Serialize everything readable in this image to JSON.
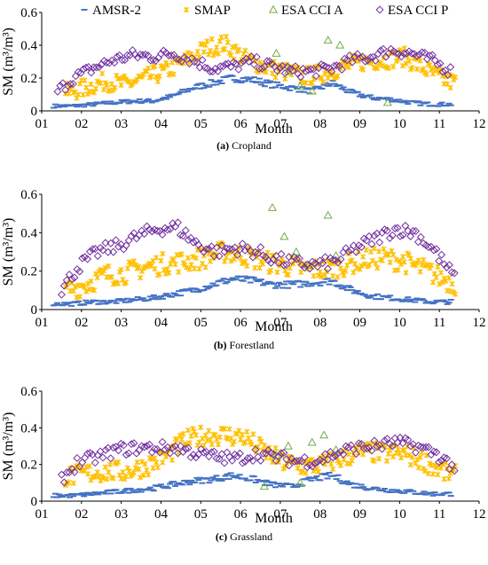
{
  "legend": [
    {
      "name": "AMSR-2",
      "color": "#4472c4",
      "marker": "dash"
    },
    {
      "name": "SMAP",
      "color": "#ffc000",
      "marker": "star"
    },
    {
      "name": "ESA CCI A",
      "color": "#70ad47",
      "marker": "triangle"
    },
    {
      "name": "ESA CCI P",
      "color": "#7030a0",
      "marker": "diamond"
    }
  ],
  "chart_data": [
    {
      "type": "scatter",
      "panel_label": "(a)",
      "caption": "Cropland",
      "xlabel": "Month",
      "ylabel": "SM (m³/m³)",
      "xlim": [
        1,
        12
      ],
      "ylim": [
        0,
        0.6
      ],
      "xticks": [
        "01",
        "02",
        "03",
        "04",
        "05",
        "06",
        "07",
        "08",
        "09",
        "10",
        "11",
        "12"
      ],
      "yticks": [
        "0",
        "0.2",
        "0.4",
        "0.6"
      ],
      "series": [
        {
          "name": "AMSR-2",
          "x": [
            1.3,
            1.8,
            2.3,
            2.8,
            3.3,
            3.8,
            4.3,
            4.8,
            5.3,
            5.8,
            6.3,
            6.8,
            7.3,
            7.8,
            8.3,
            8.8,
            9.3,
            9.8,
            10.3,
            10.8,
            11.3
          ],
          "y": [
            0.03,
            0.03,
            0.04,
            0.05,
            0.06,
            0.06,
            0.09,
            0.14,
            0.17,
            0.2,
            0.19,
            0.16,
            0.14,
            0.12,
            0.17,
            0.11,
            0.08,
            0.07,
            0.05,
            0.04,
            0.04
          ]
        },
        {
          "name": "SMAP",
          "x": [
            1.6,
            2.1,
            2.6,
            3.1,
            3.6,
            4.1,
            4.6,
            5.1,
            5.6,
            6.1,
            6.6,
            7.1,
            7.6,
            8.1,
            8.6,
            9.1,
            9.6,
            10.1,
            10.6,
            11.1,
            11.4
          ],
          "y": [
            0.11,
            0.14,
            0.18,
            0.16,
            0.2,
            0.24,
            0.3,
            0.38,
            0.41,
            0.32,
            0.27,
            0.24,
            0.21,
            0.23,
            0.27,
            0.3,
            0.31,
            0.33,
            0.26,
            0.19,
            0.17
          ]
        },
        {
          "name": "ESA CCI A",
          "x": [
            6.9,
            7.2,
            7.5,
            7.8,
            8.2,
            8.5,
            9.7
          ],
          "y": [
            0.35,
            0.24,
            0.15,
            0.12,
            0.43,
            0.4,
            0.05
          ]
        },
        {
          "name": "ESA CCI P",
          "x": [
            1.4,
            1.8,
            2.3,
            2.8,
            3.3,
            3.8,
            4.3,
            4.8,
            5.3,
            5.8,
            6.3,
            6.8,
            7.3,
            7.8,
            8.3,
            8.8,
            9.3,
            9.8,
            10.3,
            10.8,
            11.3
          ],
          "y": [
            0.12,
            0.2,
            0.26,
            0.31,
            0.34,
            0.33,
            0.35,
            0.31,
            0.26,
            0.27,
            0.3,
            0.27,
            0.24,
            0.24,
            0.26,
            0.31,
            0.33,
            0.37,
            0.35,
            0.31,
            0.24
          ]
        }
      ]
    },
    {
      "type": "scatter",
      "panel_label": "(b)",
      "caption": "Forestland",
      "xlabel": "Month",
      "ylabel": "SM (m³/m³)",
      "xlim": [
        1,
        12
      ],
      "ylim": [
        0,
        0.6
      ],
      "xticks": [
        "01",
        "02",
        "03",
        "04",
        "05",
        "06",
        "07",
        "08",
        "09",
        "10",
        "11",
        "12"
      ],
      "yticks": [
        "0",
        "0.2",
        "0.4",
        "0.6"
      ],
      "series": [
        {
          "name": "AMSR-2",
          "x": [
            1.3,
            1.8,
            2.3,
            2.8,
            3.3,
            3.8,
            4.3,
            4.8,
            5.3,
            5.8,
            6.3,
            6.8,
            7.3,
            7.8,
            8.3,
            8.8,
            9.3,
            9.8,
            10.3,
            10.8,
            11.3
          ],
          "y": [
            0.03,
            0.03,
            0.04,
            0.04,
            0.05,
            0.06,
            0.08,
            0.1,
            0.13,
            0.16,
            0.15,
            0.13,
            0.13,
            0.14,
            0.15,
            0.1,
            0.07,
            0.06,
            0.05,
            0.04,
            0.04
          ]
        },
        {
          "name": "SMAP",
          "x": [
            1.6,
            2.1,
            2.6,
            3.1,
            3.6,
            4.1,
            4.6,
            5.1,
            5.6,
            6.1,
            6.6,
            7.1,
            7.6,
            8.1,
            8.6,
            9.1,
            9.6,
            10.1,
            10.6,
            11.1,
            11.4
          ],
          "y": [
            0.1,
            0.13,
            0.18,
            0.19,
            0.22,
            0.24,
            0.25,
            0.27,
            0.3,
            0.28,
            0.25,
            0.23,
            0.21,
            0.21,
            0.23,
            0.26,
            0.27,
            0.25,
            0.21,
            0.16,
            0.13
          ]
        },
        {
          "name": "ESA CCI A",
          "x": [
            6.8,
            7.1,
            7.4,
            7.7,
            8.2,
            8.4
          ],
          "y": [
            0.53,
            0.38,
            0.3,
            0.23,
            0.49,
            0.28
          ]
        },
        {
          "name": "ESA CCI P",
          "x": [
            1.5,
            1.9,
            2.4,
            2.9,
            3.4,
            3.9,
            4.4,
            4.9,
            5.4,
            5.9,
            6.4,
            6.9,
            7.4,
            7.9,
            8.4,
            8.9,
            9.4,
            9.9,
            10.4,
            10.9,
            11.4
          ],
          "y": [
            0.1,
            0.22,
            0.3,
            0.33,
            0.38,
            0.42,
            0.43,
            0.34,
            0.3,
            0.32,
            0.3,
            0.26,
            0.24,
            0.23,
            0.25,
            0.32,
            0.37,
            0.42,
            0.4,
            0.3,
            0.16
          ]
        }
      ]
    },
    {
      "type": "scatter",
      "panel_label": "(c)",
      "caption": "Grassland",
      "xlabel": "Month",
      "ylabel": "SM (m³/m³)",
      "xlim": [
        1,
        12
      ],
      "ylim": [
        0,
        0.6
      ],
      "xticks": [
        "01",
        "02",
        "03",
        "04",
        "05",
        "06",
        "07",
        "08",
        "09",
        "10",
        "11",
        "12"
      ],
      "yticks": [
        "0",
        "0.2",
        "0.4",
        "0.6"
      ],
      "series": [
        {
          "name": "AMSR-2",
          "x": [
            1.3,
            1.8,
            2.3,
            2.8,
            3.3,
            3.8,
            4.3,
            4.8,
            5.3,
            5.8,
            6.3,
            6.8,
            7.3,
            7.8,
            8.3,
            8.8,
            9.3,
            9.8,
            10.3,
            10.8,
            11.3
          ],
          "y": [
            0.03,
            0.03,
            0.04,
            0.05,
            0.06,
            0.07,
            0.09,
            0.11,
            0.12,
            0.14,
            0.12,
            0.09,
            0.08,
            0.12,
            0.14,
            0.09,
            0.07,
            0.06,
            0.05,
            0.04,
            0.04
          ]
        },
        {
          "name": "SMAP",
          "x": [
            1.6,
            2.1,
            2.6,
            3.1,
            3.6,
            4.1,
            4.6,
            5.1,
            5.6,
            6.1,
            6.6,
            7.1,
            7.6,
            8.1,
            8.6,
            9.1,
            9.6,
            10.1,
            10.6,
            11.1,
            11.4
          ],
          "y": [
            0.13,
            0.15,
            0.16,
            0.16,
            0.19,
            0.24,
            0.33,
            0.36,
            0.36,
            0.35,
            0.27,
            0.21,
            0.19,
            0.2,
            0.24,
            0.27,
            0.26,
            0.26,
            0.22,
            0.16,
            0.14
          ]
        },
        {
          "name": "ESA CCI A",
          "x": [
            6.6,
            6.9,
            7.2,
            7.5,
            7.8,
            8.1,
            8.4
          ],
          "y": [
            0.08,
            0.25,
            0.3,
            0.1,
            0.32,
            0.36,
            0.28
          ]
        },
        {
          "name": "ESA CCI P",
          "x": [
            1.5,
            1.9,
            2.4,
            2.9,
            3.4,
            3.9,
            4.4,
            4.9,
            5.4,
            5.9,
            6.4,
            6.9,
            7.4,
            7.9,
            8.4,
            8.9,
            9.4,
            9.9,
            10.4,
            10.9,
            11.4
          ],
          "y": [
            0.12,
            0.21,
            0.24,
            0.28,
            0.29,
            0.29,
            0.29,
            0.26,
            0.24,
            0.23,
            0.26,
            0.24,
            0.22,
            0.22,
            0.26,
            0.29,
            0.3,
            0.32,
            0.3,
            0.26,
            0.18
          ]
        }
      ]
    }
  ]
}
